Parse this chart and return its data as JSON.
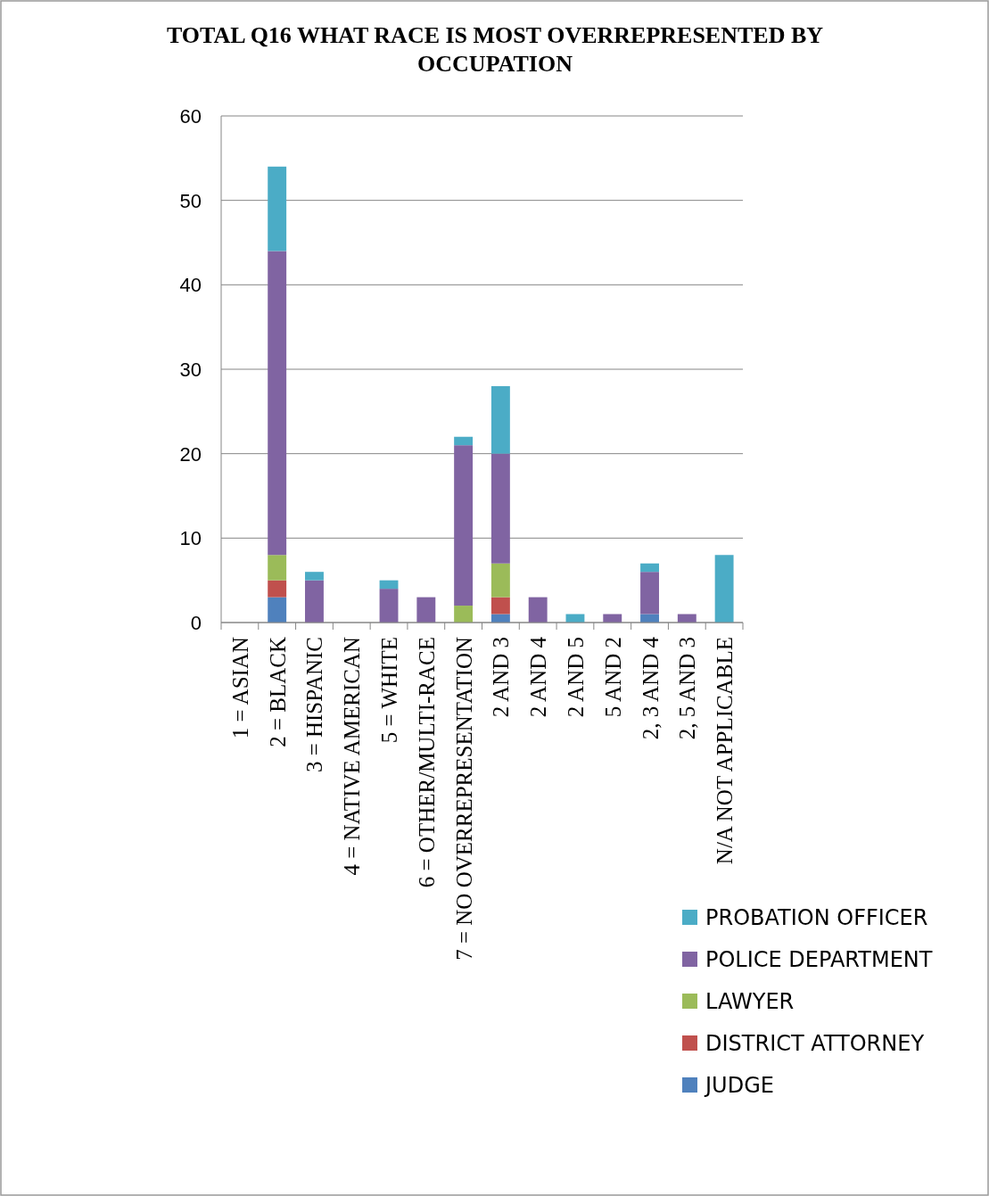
{
  "chart_data": {
    "type": "bar",
    "title": "TOTAL Q16 WHAT RACE IS MOST  OVERREPRESENTED  BY OCCUPATION",
    "stacked": true,
    "categories": [
      "1 = ASIAN",
      "2 = BLACK",
      "3 = HISPANIC",
      "4 = NATIVE AMERICAN",
      "5 = WHITE",
      "6 = OTHER/MULTI-RACE",
      "7 = NO OVERREPRESENTATION",
      "2 AND 3",
      "2 AND 4",
      "2 AND 5",
      "5 AND 2",
      "2, 3 AND 4",
      "2, 5 AND 3",
      "N/A NOT APPLICABLE"
    ],
    "series": [
      {
        "name": "JUDGE",
        "color": "#4f81bd",
        "values": [
          0,
          3,
          0,
          0,
          0,
          0,
          0,
          1,
          0,
          0,
          0,
          1,
          0,
          0
        ]
      },
      {
        "name": "DISTRICT ATTORNEY",
        "color": "#c0504d",
        "values": [
          0,
          2,
          0,
          0,
          0,
          0,
          0,
          2,
          0,
          0,
          0,
          0,
          0,
          0
        ]
      },
      {
        "name": "LAWYER",
        "color": "#9bbb59",
        "values": [
          0,
          3,
          0,
          0,
          0,
          0,
          2,
          4,
          0,
          0,
          0,
          0,
          0,
          0
        ]
      },
      {
        "name": "POLICE DEPARTMENT",
        "color": "#8064a2",
        "values": [
          0,
          36,
          5,
          0,
          4,
          3,
          19,
          13,
          3,
          0,
          1,
          5,
          1,
          0
        ]
      },
      {
        "name": "PROBATION OFFICER",
        "color": "#4bacc6",
        "values": [
          0,
          10,
          1,
          0,
          1,
          0,
          1,
          8,
          0,
          1,
          0,
          1,
          0,
          8
        ]
      }
    ],
    "ylim": [
      0,
      60
    ],
    "yticks": [
      0,
      10,
      20,
      30,
      40,
      50,
      60
    ],
    "grid": "y",
    "legend": "bottom right"
  }
}
